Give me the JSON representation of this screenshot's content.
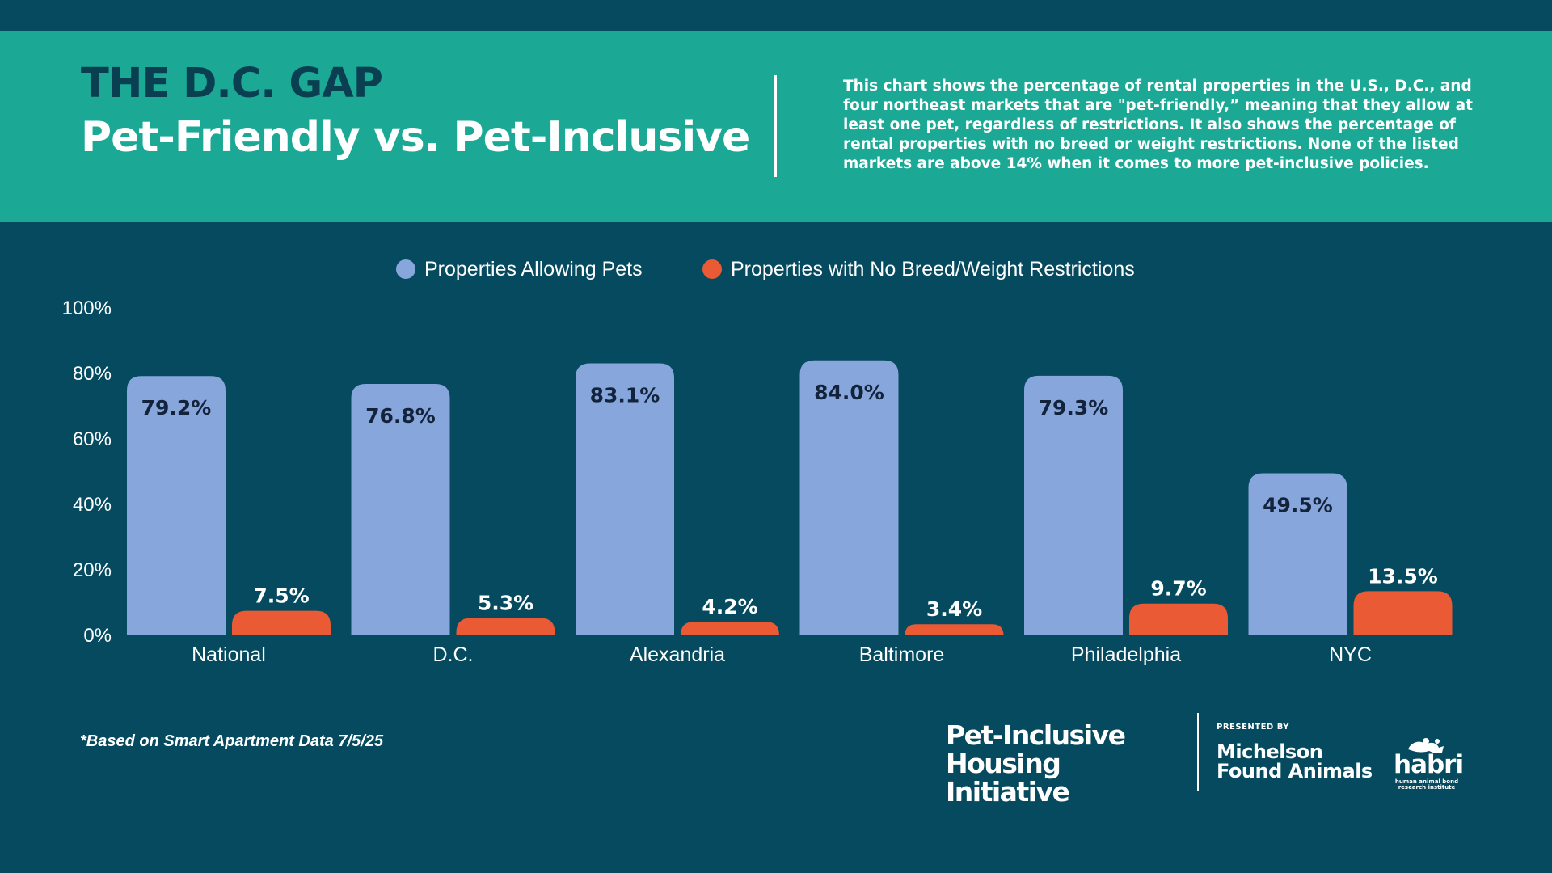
{
  "header": {
    "kicker": "THE D.C. GAP",
    "title": "Pet-Friendly vs. Pet-Inclusive",
    "description": "This chart shows the percentage of rental properties in the U.S., D.C., and four northeast markets that are \"pet-friendly,” meaning that they allow at least one pet, regardless of restrictions. It also shows the percentage of rental properties with no breed or weight restrictions. None of the listed markets are above 14% when it comes to more pet-inclusive policies."
  },
  "colors": {
    "background": "#054a5e",
    "header_band": "#1ba996",
    "kicker_text": "#0a3f52",
    "series_allowing": "#87a6dc",
    "series_no_restrictions": "#e95a35",
    "label_dark": "#13233b",
    "text_light": "#ffffff"
  },
  "chart_data": {
    "type": "bar",
    "categories": [
      "National",
      "D.C.",
      "Alexandria",
      "Baltimore",
      "Philadelphia",
      "NYC"
    ],
    "series": [
      {
        "name": "Properties Allowing Pets",
        "values": [
          79.2,
          76.8,
          83.1,
          84.0,
          79.3,
          49.5
        ],
        "labels": [
          "79.2%",
          "76.8%",
          "83.1%",
          "84.0%",
          "79.3%",
          "49.5%"
        ]
      },
      {
        "name": "Properties with No Breed/Weight Restrictions",
        "values": [
          7.5,
          5.3,
          4.2,
          3.4,
          9.7,
          13.5
        ],
        "labels": [
          "7.5%",
          "5.3%",
          "4.2%",
          "3.4%",
          "9.7%",
          "13.5%"
        ]
      }
    ],
    "yticks": [
      "0%",
      "20%",
      "40%",
      "60%",
      "80%",
      "100%"
    ],
    "ylim": [
      0,
      100
    ],
    "legend_position": "top-center",
    "grid": false
  },
  "footer": {
    "footnote": "*Based on Smart Apartment Data 7/5/25",
    "initiative_line1": "Pet-Inclusive",
    "initiative_line2": "Housing Initiative",
    "presented_by": "PRESENTED BY",
    "org_line1": "Michelson",
    "org_line2": "Found Animals",
    "habri_word": "habri",
    "habri_sub": "human animal bond research institute",
    "habri_icon": "dog-cat-logo-icon"
  }
}
